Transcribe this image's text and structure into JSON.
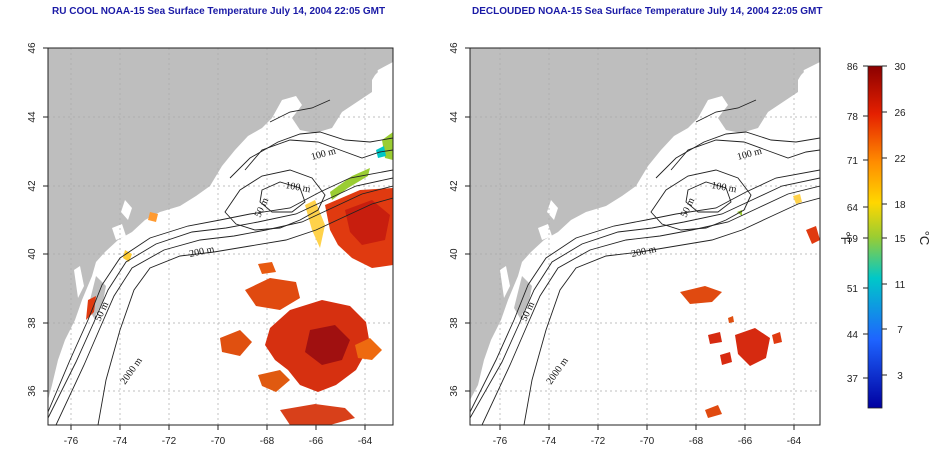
{
  "maps": [
    {
      "title": "RU COOL NOAA-15 Sea Surface Temperature July 14, 2004 22:05 GMT",
      "x_ticks": [
        "-76",
        "-74",
        "-72",
        "-70",
        "-68",
        "-66",
        "-64"
      ],
      "y_ticks": [
        "36",
        "38",
        "40",
        "42",
        "44",
        "46"
      ],
      "contour_labels": [
        "100 m",
        "100 m",
        "50 m",
        "200 m",
        "50 m",
        "2000 m"
      ]
    },
    {
      "title": "DECLOUDED NOAA-15 Sea Surface Temperature July 14, 2004 22:05 GMT",
      "x_ticks": [
        "-76",
        "-74",
        "-72",
        "-70",
        "-68",
        "-66",
        "-64"
      ],
      "y_ticks": [
        "36",
        "38",
        "40",
        "42",
        "44",
        "46"
      ],
      "contour_labels": [
        "100 m",
        "100 m",
        "50 m",
        "200 m",
        "50 m",
        "2000 m"
      ]
    }
  ],
  "colorbar": {
    "fahrenheit_ticks": [
      "86",
      "78",
      "71",
      "64",
      "59",
      "51",
      "44",
      "37"
    ],
    "celsius_ticks": [
      "30",
      "26",
      "22",
      "18",
      "15",
      "11",
      "7",
      "3"
    ],
    "fahrenheit_unit": "°F",
    "celsius_unit": "°C",
    "colors": [
      "#8b0000",
      "#e52000",
      "#ff8c00",
      "#ffd700",
      "#9acd32",
      "#00c8c8",
      "#1e64ff",
      "#0000a0"
    ]
  },
  "colors": {
    "land": "#bebebe",
    "ocean": "#ffffff",
    "sst_hot": "#d42a10",
    "sst_warm": "#e05a10",
    "title": "#1a1aa6"
  }
}
